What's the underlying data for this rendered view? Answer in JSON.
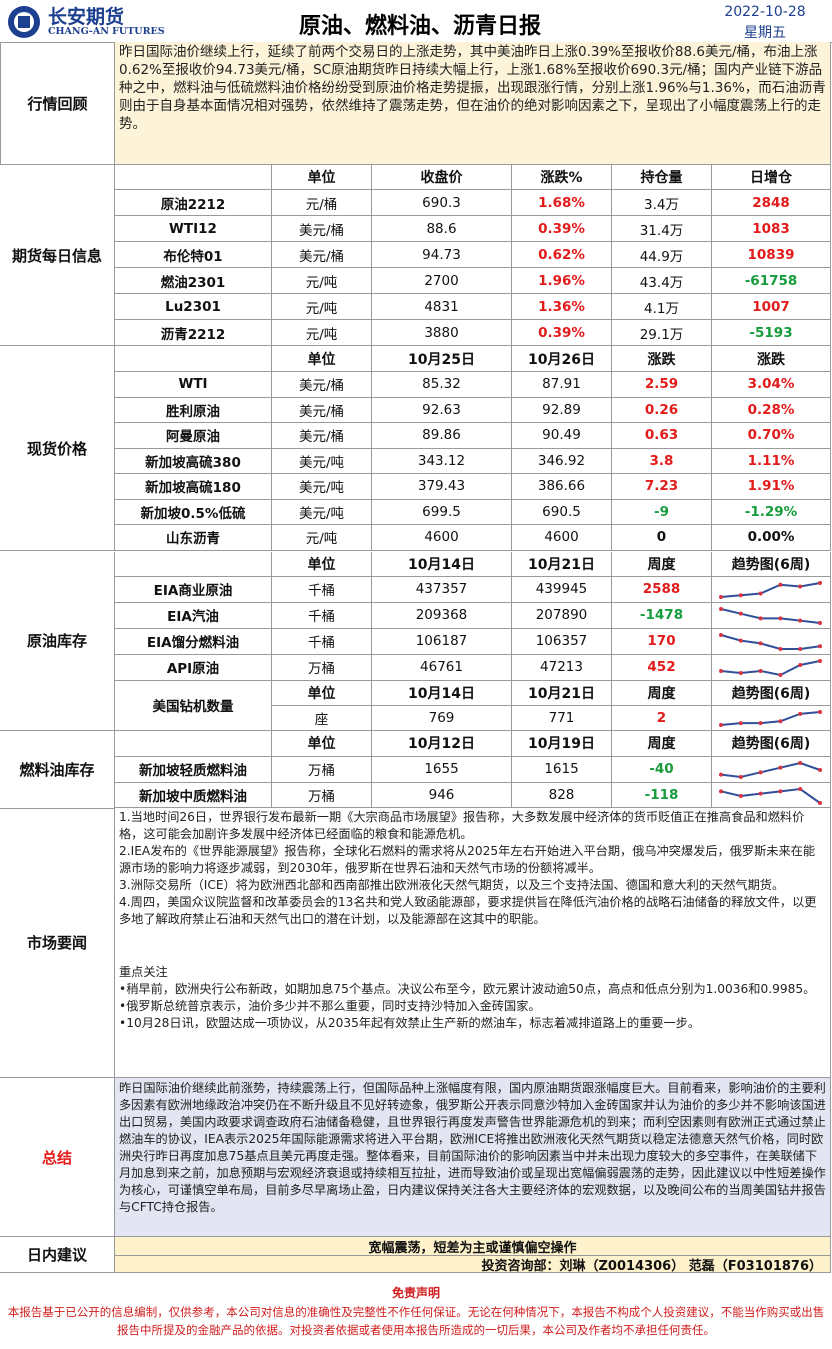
{
  "header": {
    "logo_cn": "长安期货",
    "logo_en": "CHANG-AN FUTURES",
    "title": "原油、燃料油、沥青日报",
    "date": "2022-10-28",
    "weekday": "星期五"
  },
  "review": {
    "label": "行情回顾",
    "text": "昨日国际油价继续上行，延续了前两个交易日的上涨走势，其中美油昨日上涨0.39%至报收价88.6美元/桶，布油上涨0.62%至报收价94.73美元/桶，SC原油期货昨日持续大幅上行，上涨1.68%至报收价690.3元/桶；国内产业链下游品种之中，燃料油与低硫燃料油价格纷纷受到原油价格走势提振，出现跟涨行情，分别上涨1.96%与1.36%，而石油沥青则由于自身基本面情况相对强势，依然维持了震荡走势，但在油价的绝对影响因素之下，呈现出了小幅度震荡上行的走势。"
  },
  "futures": {
    "label": "期货每日信息",
    "columns": [
      "单位",
      "收盘价",
      "涨跌%",
      "持仓量",
      "日增仓"
    ],
    "rows": [
      [
        "原油2212",
        "元/桶",
        "690.3",
        "1.68%",
        "3.4万",
        "2848"
      ],
      [
        "WTI12",
        "美元/桶",
        "88.6",
        "0.39%",
        "31.4万",
        "1083"
      ],
      [
        "布伦特01",
        "美元/桶",
        "94.73",
        "0.62%",
        "44.9万",
        "10839"
      ],
      [
        "燃油2301",
        "元/吨",
        "2700",
        "1.96%",
        "43.4万",
        "-61758"
      ],
      [
        "Lu2301",
        "元/吨",
        "4831",
        "1.36%",
        "4.1万",
        "1007"
      ],
      [
        "沥青2212",
        "元/吨",
        "3880",
        "0.39%",
        "29.1万",
        "-5193"
      ]
    ]
  },
  "spot": {
    "label": "现货价格",
    "columns": [
      "单位",
      "10月25日",
      "10月26日",
      "涨跌",
      "涨跌"
    ],
    "rows": [
      [
        "WTI",
        "美元/桶",
        "85.32",
        "87.91",
        "2.59",
        "3.04%"
      ],
      [
        "胜利原油",
        "美元/桶",
        "92.63",
        "92.89",
        "0.26",
        "0.28%"
      ],
      [
        "阿曼原油",
        "美元/桶",
        "89.86",
        "90.49",
        "0.63",
        "0.70%"
      ],
      [
        "新加坡高硫380",
        "美元/吨",
        "343.12",
        "346.92",
        "3.8",
        "1.11%"
      ],
      [
        "新加坡高硫180",
        "美元/吨",
        "379.43",
        "386.66",
        "7.23",
        "1.91%"
      ],
      [
        "新加坡0.5%低硫",
        "美元/吨",
        "699.5",
        "690.5",
        "-9",
        "-1.29%"
      ],
      [
        "山东沥青",
        "元/吨",
        "4600",
        "4600",
        "0",
        "0.00%"
      ]
    ]
  },
  "crude_stock": {
    "label": "原油库存",
    "columns": [
      "单位",
      "10月14日",
      "10月21日",
      "周度",
      "趋势图(6周)"
    ],
    "rows": [
      {
        "cells": [
          "EIA商业原油",
          "千桶",
          "437357",
          "439945",
          "2588"
        ],
        "trend": [
          1,
          2,
          3,
          8,
          7,
          9
        ]
      },
      {
        "cells": [
          "EIA汽油",
          "千桶",
          "209368",
          "207890",
          "-1478"
        ],
        "trend": [
          9,
          7,
          5,
          5,
          4,
          3
        ]
      },
      {
        "cells": [
          "EIA馏分燃料油",
          "千桶",
          "106187",
          "106357",
          "170"
        ],
        "trend": [
          8,
          6,
          5,
          3,
          3,
          4
        ]
      },
      {
        "cells": [
          "API原油",
          "万桶",
          "46761",
          "47213",
          "452"
        ],
        "trend": [
          3,
          2,
          3,
          1,
          6,
          8
        ]
      }
    ],
    "rig": {
      "name": "美国钻机数量",
      "columns": [
        "单位",
        "10月14日",
        "10月21日",
        "周度",
        "趋势图(6周)"
      ],
      "cells": [
        "座",
        "769",
        "771",
        "2"
      ],
      "trend": [
        2,
        3,
        3,
        4,
        8,
        9
      ]
    }
  },
  "fuel_stock": {
    "label": "燃料油库存",
    "columns": [
      "单位",
      "10月12日",
      "10月19日",
      "周度",
      "趋势图(6周)"
    ],
    "rows": [
      {
        "cells": [
          "新加坡轻质燃料油",
          "万桶",
          "1655",
          "1615",
          "-40"
        ],
        "trend": [
          3,
          2,
          4,
          6,
          8,
          5
        ]
      },
      {
        "cells": [
          "新加坡中质燃料油",
          "万桶",
          "946",
          "828",
          "-118"
        ],
        "trend": [
          8,
          6,
          7,
          8,
          9,
          3
        ]
      }
    ]
  },
  "news": {
    "label": "市场要闻",
    "items": [
      "1.当地时间26日，世界银行发布最新一期《大宗商品市场展望》报告称，大多数发展中经济体的货币贬值正在推高食品和燃料价格，这可能会加剧许多发展中经济体已经面临的粮食和能源危机。",
      "2.IEA发布的《世界能源展望》报告称，全球化石燃料的需求将从2025年左右开始进入平台期，俄乌冲突爆发后，俄罗斯未来在能源市场的影响力将逐步减弱，到2030年，俄罗斯在世界石油和天然气市场的份额将减半。",
      "3.洲际交易所（ICE）将为欧洲西北部和西南部推出欧洲液化天然气期货，以及三个支持法国、德国和意大利的天然气期货。",
      "4.周四，美国众议院监督和改革委员会的13名共和党人致函能源部，要求提供旨在降低汽油价格的战略石油储备的释放文件，以更多地了解政府禁止石油和天然气出口的潜在计划，以及能源部在这其中的职能。"
    ],
    "focus_title": "重点关注",
    "focus": [
      "•稍早前，欧洲央行公布新政，如期加息75个基点。决议公布至今，欧元累计波动逾50点，高点和低点分别为1.0036和0.9985。",
      "•俄罗斯总统普京表示，油价多少并不那么重要，同时支持沙特加入金砖国家。",
      "•10月28日讯，欧盟达成一项协议，从2035年起有效禁止生产新的燃油车，标志着减排道路上的重要一步。"
    ]
  },
  "summary": {
    "label": "总结",
    "text": "昨日国际油价继续此前涨势，持续震荡上行，但国际品种上涨幅度有限，国内原油期货跟涨幅度巨大。目前看来，影响油价的主要利多因素有欧洲地缘政治冲突仍在不断升级且不见好转迹象，俄罗斯公开表示同意沙特加入金砖国家并认为油价的多少并不影响该国进出口贸易，美国内政要求调查政府石油储备稳健，且世界银行再度发声警告世界能源危机的到来；而利空因素则有欧洲正式通过禁止燃油车的协议，IEA表示2025年国际能源需求将进入平台期，欧洲ICE将推出欧洲液化天然气期货以稳定法德意天然气价格，同时欧洲央行昨日再度加息75基点且美元再度走强。整体看来，目前国际油价的影响因素当中并未出现力度较大的多空事件，在美联储下月加息到来之前，加息预期与宏观经济衰退或持续相互拉扯，进而导致油价或呈现出宽幅偏弱震荡的走势，因此建议以中性短差操作为核心，可谨慎空单布局，目前多尽早离场止盈，日内建议保持关注各大主要经济体的宏观数据，以及晚间公布的当周美国钻井报告与CFTC持仓报告。"
  },
  "advice": {
    "label": "日内建议",
    "text": "宽幅震荡，短差为主或谨慎偏空操作",
    "contact": "投资咨询部：刘琳（Z0014306） 范磊（F03101876）"
  },
  "disclaimer": {
    "title": "免责声明",
    "text": "本报告基于已公开的信息编制，仅供参考，本公司对信息的准确性及完整性不作任何保证。无论在何种情况下，本报告不构成个人投资建议，不能当作购买或出售报告中所提及的金融产品的依据。对投资者依据或者使用本报告所造成的一切后果，本公司及作者均不承担任何责任。"
  }
}
